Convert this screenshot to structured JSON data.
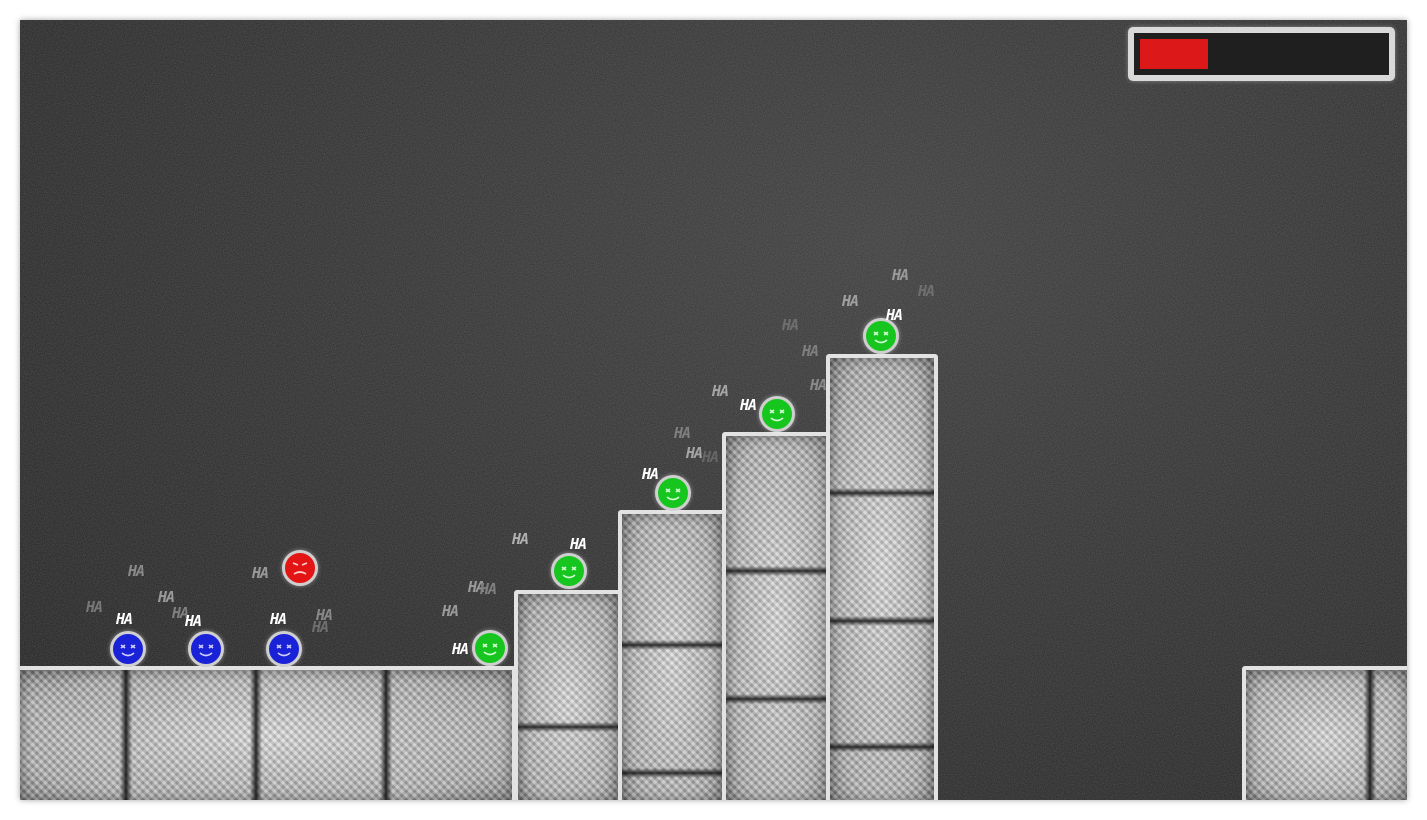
{
  "game": {
    "colors": {
      "background": "#2b2b2b",
      "chalk": "#e2e2e2",
      "health_fill": "#dd1818",
      "blue_ball": "#1a22d8",
      "green_ball": "#17c51f",
      "red_ball": "#e31414"
    },
    "health_bar": {
      "fraction": 0.28
    },
    "laugh_text": "HA",
    "characters": [
      {
        "name": "blue-ball-1",
        "color": "blue",
        "expression": "laughing"
      },
      {
        "name": "blue-ball-2",
        "color": "blue",
        "expression": "laughing"
      },
      {
        "name": "blue-ball-3",
        "color": "blue",
        "expression": "laughing"
      },
      {
        "name": "red-ball-player",
        "color": "red",
        "expression": "frowning"
      },
      {
        "name": "green-ball-1",
        "color": "green",
        "expression": "laughing"
      },
      {
        "name": "green-ball-2",
        "color": "green",
        "expression": "laughing"
      },
      {
        "name": "green-ball-3",
        "color": "green",
        "expression": "laughing"
      },
      {
        "name": "green-ball-4",
        "color": "green",
        "expression": "laughing"
      },
      {
        "name": "green-ball-5",
        "color": "green",
        "expression": "laughing"
      }
    ]
  }
}
